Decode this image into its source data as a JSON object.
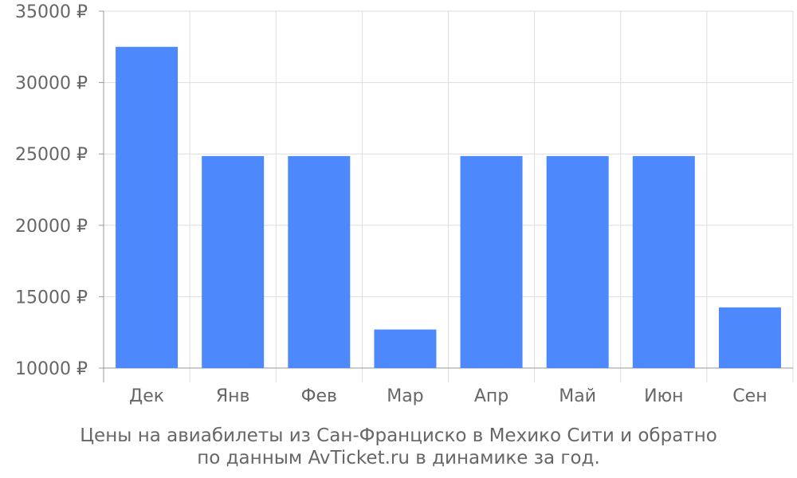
{
  "chart_data": {
    "type": "bar",
    "categories": [
      "Дек",
      "Янв",
      "Фев",
      "Мар",
      "Апр",
      "Май",
      "Июн",
      "Сен"
    ],
    "values": [
      32500,
      24850,
      24850,
      12700,
      24850,
      24850,
      24850,
      14250
    ],
    "ylim": [
      10000,
      35000
    ],
    "yticks": [
      10000,
      15000,
      20000,
      25000,
      30000,
      35000
    ],
    "ytick_labels": [
      "10000 ₽",
      "15000 ₽",
      "20000 ₽",
      "25000 ₽",
      "30000 ₽",
      "35000 ₽"
    ],
    "bar_color": "#4d88fc",
    "grid": true,
    "caption_line1": "Цены на авиабилеты из Сан-Франциско в Мехико Сити и обратно",
    "caption_line2": "по данным AvTicket.ru в динамике за год."
  }
}
